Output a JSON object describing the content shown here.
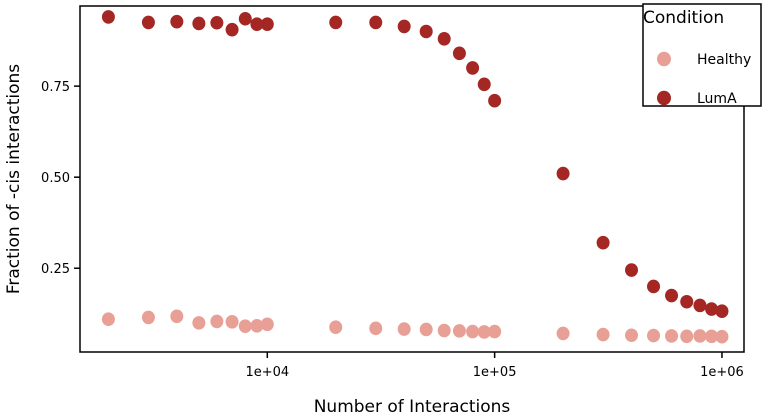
{
  "chart_data": {
    "type": "scatter",
    "xlabel": "Number of Interactions",
    "ylabel": "Fraction of -cis interactions",
    "x_scale": "log",
    "xlim": [
      1500,
      1250000
    ],
    "ylim": [
      0.02,
      0.97
    ],
    "x_ticks": [
      10000,
      100000,
      1000000
    ],
    "x_tick_labels": [
      "1e+04",
      "1e+05",
      "1e+06"
    ],
    "y_ticks": [
      0.25,
      0.5,
      0.75
    ],
    "y_tick_labels": [
      "0.25",
      "0.50",
      "0.75"
    ],
    "grid": false,
    "legend": {
      "title": "Condition",
      "position": "top-right"
    },
    "series": [
      {
        "name": "Healthy",
        "color": "#e8a096",
        "x": [
          2000,
          3000,
          4000,
          5000,
          6000,
          7000,
          8000,
          9000,
          10000,
          20000,
          30000,
          40000,
          50000,
          60000,
          70000,
          80000,
          90000,
          100000,
          200000,
          300000,
          400000,
          500000,
          600000,
          700000,
          800000,
          900000,
          1000000
        ],
        "values": [
          0.11,
          0.115,
          0.118,
          0.1,
          0.104,
          0.103,
          0.091,
          0.092,
          0.096,
          0.088,
          0.085,
          0.083,
          0.082,
          0.079,
          0.078,
          0.076,
          0.075,
          0.076,
          0.071,
          0.068,
          0.066,
          0.065,
          0.064,
          0.063,
          0.064,
          0.063,
          0.062
        ]
      },
      {
        "name": "LumA",
        "color": "#a42723",
        "x": [
          2000,
          3000,
          4000,
          5000,
          6000,
          7000,
          8000,
          9000,
          10000,
          20000,
          30000,
          40000,
          50000,
          60000,
          70000,
          80000,
          90000,
          100000,
          200000,
          300000,
          400000,
          500000,
          600000,
          700000,
          800000,
          900000,
          1000000
        ],
        "values": [
          0.94,
          0.925,
          0.927,
          0.922,
          0.924,
          0.905,
          0.935,
          0.92,
          0.92,
          0.925,
          0.925,
          0.914,
          0.9,
          0.88,
          0.84,
          0.8,
          0.755,
          0.71,
          0.51,
          0.32,
          0.245,
          0.2,
          0.175,
          0.158,
          0.148,
          0.138,
          0.132
        ]
      }
    ]
  }
}
